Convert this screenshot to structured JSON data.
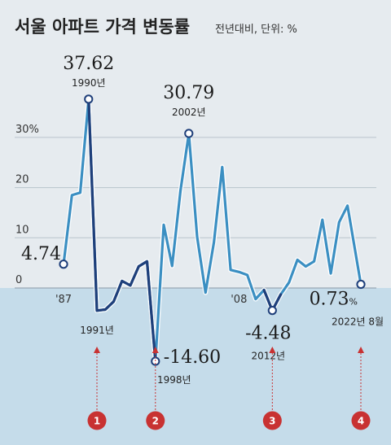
{
  "title": "서울 아파트 가격 변동률",
  "subtitle": "전년대비, 단위: %",
  "colors": {
    "background": "#e6ebef",
    "below_zero_band": "#c5dcea",
    "line_light": "#3b8fc2",
    "line_dark": "#1f3f7a",
    "marker_arrow": "#c83232",
    "grid": "#b9c4cc"
  },
  "chart_data": {
    "type": "line",
    "title": "서울 아파트 가격 변동률",
    "subtitle": "전년대비, 단위: %",
    "x": [
      1987,
      1988,
      1989,
      1990,
      1991,
      1992,
      1993,
      1994,
      1995,
      1996,
      1997,
      1998,
      1999,
      2000,
      2001,
      2002,
      2003,
      2004,
      2005,
      2006,
      2007,
      2008,
      2009,
      2010,
      2011,
      2012,
      2013,
      2014,
      2015,
      2016,
      2017,
      2018,
      2019,
      2020,
      2021,
      2022.6
    ],
    "values": [
      4.74,
      18.5,
      19.0,
      37.62,
      -4.5,
      -4.3,
      -2.7,
      1.4,
      0.5,
      4.3,
      5.3,
      -14.6,
      12.6,
      4.4,
      19.3,
      30.79,
      10.2,
      -0.9,
      9.1,
      24.1,
      3.6,
      3.2,
      2.6,
      -2.2,
      -0.4,
      -4.48,
      -1.3,
      1.1,
      5.6,
      4.3,
      5.3,
      13.6,
      2.9,
      13.1,
      16.4,
      0.73
    ],
    "dark_segments": [
      [
        1990,
        1998
      ],
      [
        2011,
        2013
      ]
    ],
    "y_ticks": [
      0,
      10,
      20,
      30
    ],
    "y_tick_labels": [
      "0",
      "10",
      "20",
      "30%"
    ],
    "x_tick_labels": [
      {
        "x": 1987,
        "label": "'87"
      },
      {
        "x": 2008,
        "label": "'08"
      }
    ],
    "ylim": [
      -19,
      41
    ],
    "xlim": [
      1987,
      2022.6
    ],
    "grid": "horizontal",
    "highlights": [
      {
        "x": 1987,
        "value_label": "4.74"
      },
      {
        "x": 1990,
        "value_label": "37.62",
        "year_label": "1990년"
      },
      {
        "x": 2002,
        "value_label": "30.79",
        "year_label": "2002년"
      },
      {
        "x": 1998,
        "value_label": "-14.60",
        "year_label": "1998년"
      },
      {
        "x": 2012,
        "value_label": "-4.48",
        "year_label": "2012년"
      },
      {
        "x": 2022.6,
        "value_label": "0.73",
        "unit": "%",
        "year_label": "2022년 8월"
      }
    ],
    "markers": [
      {
        "number": "1",
        "x": 1991,
        "label": "1991년"
      },
      {
        "number": "2",
        "x": 1998
      },
      {
        "number": "3",
        "x": 2012
      },
      {
        "number": "4",
        "x": 2022.6
      }
    ]
  }
}
